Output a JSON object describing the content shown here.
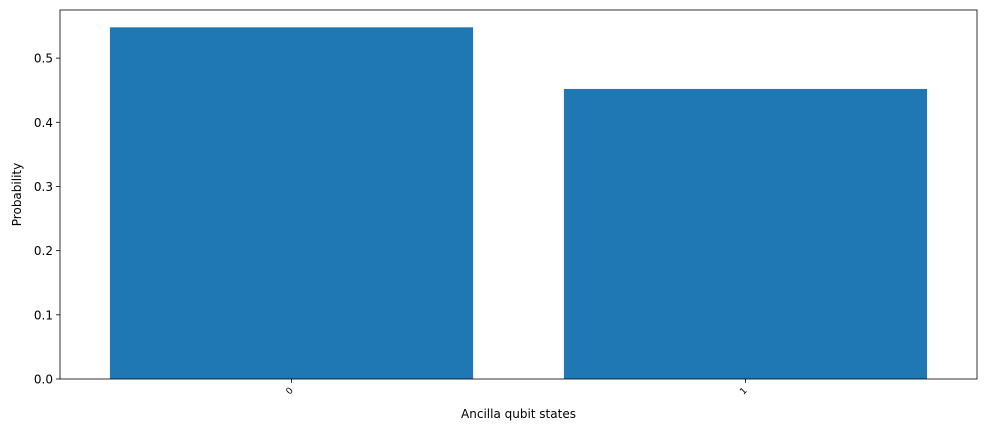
{
  "chart_data": {
    "type": "bar",
    "title": "",
    "xlabel": "Ancilla qubit states",
    "ylabel": "Probability",
    "categories": [
      "0",
      "1"
    ],
    "values": [
      0.548,
      0.452
    ],
    "ylim": [
      0,
      0.575
    ],
    "yticks": [
      "0.0",
      "0.1",
      "0.2",
      "0.3",
      "0.4",
      "0.5"
    ],
    "bar_color": "#1f77b4",
    "grid": false,
    "legend": "none",
    "xtick_rotation_deg": 45
  }
}
